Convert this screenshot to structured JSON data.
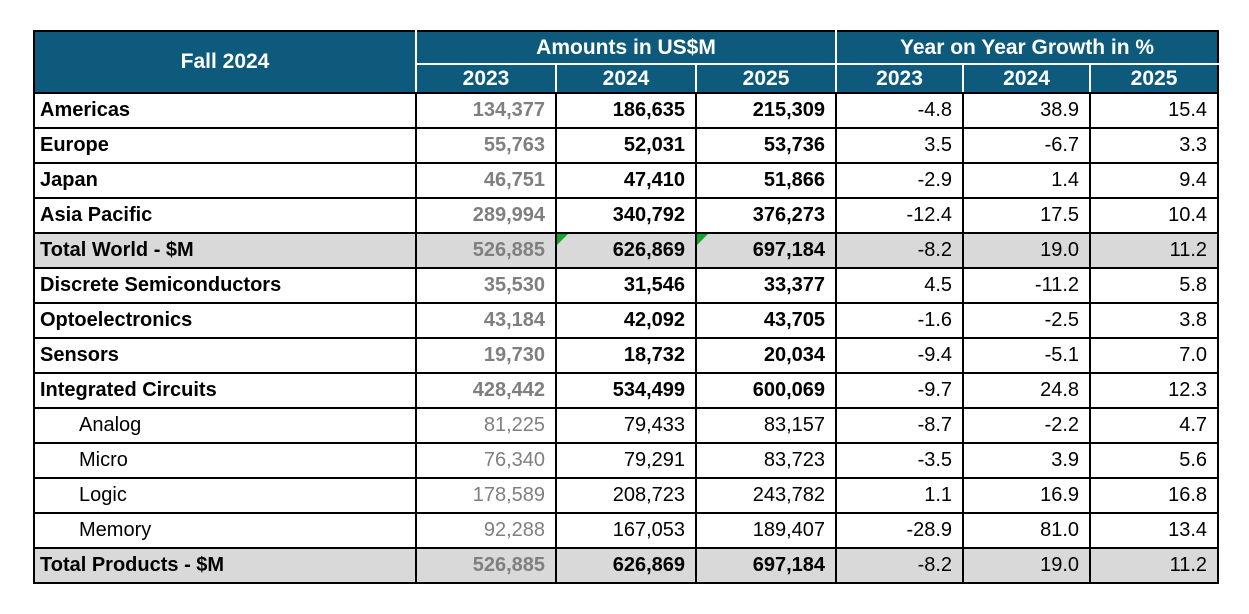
{
  "chart_data": {
    "type": "table",
    "title": "Fall 2024",
    "column_groups": [
      "Amounts in US$M",
      "Year on Year Growth in %"
    ],
    "years": [
      "2023",
      "2024",
      "2025"
    ],
    "rows": [
      {
        "label": "Americas",
        "style": "main",
        "amounts": [
          134377,
          186635,
          215309
        ],
        "growth": [
          -4.8,
          38.9,
          15.4
        ]
      },
      {
        "label": "Europe",
        "style": "main",
        "amounts": [
          55763,
          52031,
          53736
        ],
        "growth": [
          3.5,
          -6.7,
          3.3
        ]
      },
      {
        "label": "Japan",
        "style": "main",
        "amounts": [
          46751,
          47410,
          51866
        ],
        "growth": [
          -2.9,
          1.4,
          9.4
        ]
      },
      {
        "label": "Asia Pacific",
        "style": "main",
        "amounts": [
          289994,
          340792,
          376273
        ],
        "growth": [
          -12.4,
          17.5,
          10.4
        ]
      },
      {
        "label": "Total World - $M",
        "style": "total",
        "amounts": [
          526885,
          626869,
          697184
        ],
        "growth": [
          -8.2,
          19.0,
          11.2
        ],
        "corner_marks": [
          1,
          2
        ]
      },
      {
        "label": "Discrete Semiconductors",
        "style": "main",
        "amounts": [
          35530,
          31546,
          33377
        ],
        "growth": [
          4.5,
          -11.2,
          5.8
        ]
      },
      {
        "label": "Optoelectronics",
        "style": "main",
        "amounts": [
          43184,
          42092,
          43705
        ],
        "growth": [
          -1.6,
          -2.5,
          3.8
        ]
      },
      {
        "label": "Sensors",
        "style": "main",
        "amounts": [
          19730,
          18732,
          20034
        ],
        "growth": [
          -9.4,
          -5.1,
          7.0
        ]
      },
      {
        "label": "Integrated Circuits",
        "style": "main",
        "amounts": [
          428442,
          534499,
          600069
        ],
        "growth": [
          -9.7,
          24.8,
          12.3
        ]
      },
      {
        "label": "Analog",
        "style": "sub",
        "amounts": [
          81225,
          79433,
          83157
        ],
        "growth": [
          -8.7,
          -2.2,
          4.7
        ]
      },
      {
        "label": "Micro",
        "style": "sub",
        "amounts": [
          76340,
          79291,
          83723
        ],
        "growth": [
          -3.5,
          3.9,
          5.6
        ]
      },
      {
        "label": "Logic",
        "style": "sub",
        "amounts": [
          178589,
          208723,
          243782
        ],
        "growth": [
          1.1,
          16.9,
          16.8
        ]
      },
      {
        "label": "Memory",
        "style": "sub",
        "amounts": [
          92288,
          167053,
          189407
        ],
        "growth": [
          -28.9,
          81.0,
          13.4
        ]
      },
      {
        "label": "Total Products - $M",
        "style": "total",
        "amounts": [
          526885,
          626869,
          697184
        ],
        "growth": [
          -8.2,
          19.0,
          11.2
        ]
      }
    ],
    "layout": {
      "grid": "on",
      "group_header_row": true,
      "year_header_row": true
    }
  },
  "colors": {
    "header_bg": "#0E5A7C",
    "header_text": "#FFFFFF",
    "total_row_bg": "#D9D9D9",
    "amount_2023_text": "#7F7F7F",
    "body_text": "#000000",
    "border": "#000000",
    "corner_mark_green": "#17A32B"
  }
}
